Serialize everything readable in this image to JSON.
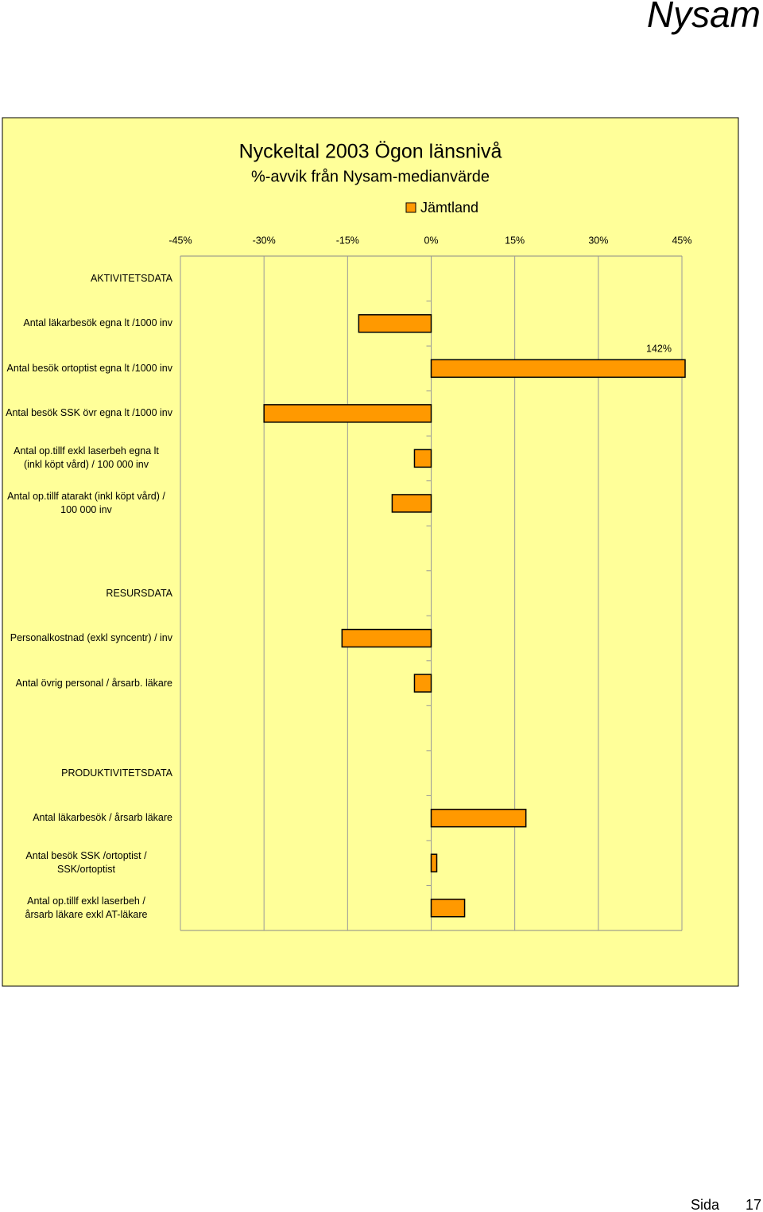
{
  "header": {
    "title": "Nysam"
  },
  "footer": {
    "label": "Sida",
    "page": 17
  },
  "chart_data": {
    "type": "bar",
    "orientation": "horizontal",
    "title": "Nyckeltal 2003  Ögon länsnivå",
    "subtitle": "%-avvik från Nysam-medianvärde",
    "categories": [
      "AKTIVITETSDATA",
      "Antal läkarbesök egna lt /1000 inv",
      "Antal besök ortoptist egna lt /1000 inv",
      "Antal besök SSK övr egna lt /1000 inv",
      "Antal op.tillf   exkl laserbeh egna lt\n(inkl köpt vård) / 100 000 inv",
      "Antal op.tillf atarakt (inkl köpt vård) /\n100 000 inv",
      null,
      "RESURSDATA",
      "Personalkostnad (exkl syncentr) / inv",
      "Antal övrig personal / årsarb. läkare",
      null,
      "PRODUKTIVITETSDATA",
      "Antal läkarbesök / årsarb läkare",
      "Antal besök SSK /ortoptist /\nSSK/ortoptist",
      "Antal op.tillf exkl laserbeh /\nårsarb läkare exkl AT-läkare"
    ],
    "series": [
      {
        "name": "Jämtland",
        "color": "#ff9900",
        "values": [
          null,
          -13,
          142,
          -30,
          -3,
          -7,
          null,
          null,
          -16,
          -3,
          null,
          null,
          17,
          1,
          6
        ],
        "value_labels": [
          null,
          null,
          "142%",
          null,
          null,
          null,
          null,
          null,
          null,
          null,
          null,
          null,
          null,
          null,
          null
        ]
      }
    ],
    "xlim": [
      -45,
      45
    ],
    "xticks": [
      {
        "value": -45,
        "label": "-45%"
      },
      {
        "value": -30,
        "label": "-30%"
      },
      {
        "value": -15,
        "label": "-15%"
      },
      {
        "value": 0,
        "label": "0%"
      },
      {
        "value": 15,
        "label": "15%"
      },
      {
        "value": 30,
        "label": "30%"
      },
      {
        "value": 45,
        "label": "45%"
      }
    ],
    "grid": true,
    "legend": "top"
  }
}
